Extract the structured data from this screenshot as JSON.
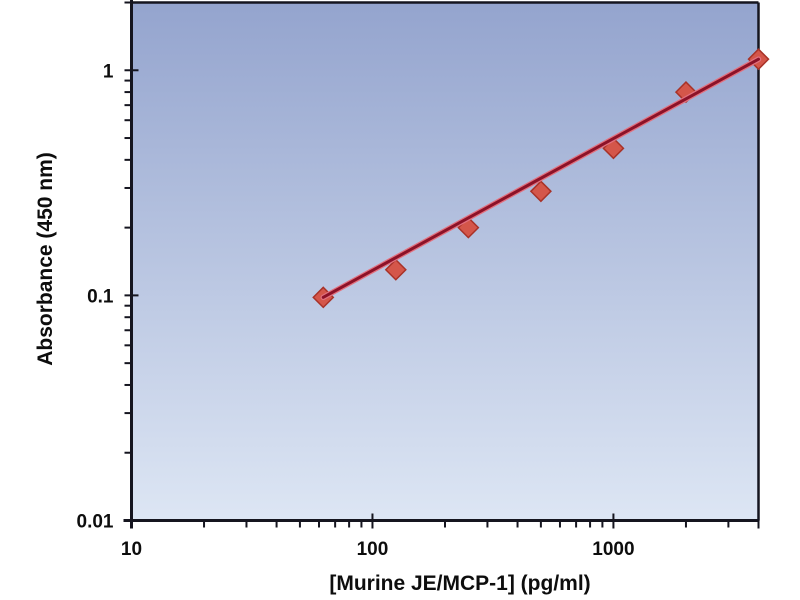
{
  "figure": {
    "background": "#ffffff"
  },
  "chart_data": {
    "type": "scatter",
    "title": "",
    "xlabel": "[Murine JE/MCP-1] (pg/ml)",
    "ylabel": "Absorbance (450 nm)",
    "x_scale": "log",
    "y_scale": "log",
    "xlim": [
      10,
      4000
    ],
    "ylim": [
      0.01,
      2
    ],
    "grid": false,
    "legend": null,
    "x_major_ticks": [
      {
        "value": 10,
        "label": "10"
      },
      {
        "value": 100,
        "label": "100"
      },
      {
        "value": 1000,
        "label": "1000"
      },
      {
        "value": 4000,
        "label": ""
      }
    ],
    "y_major_ticks": [
      {
        "value": 1,
        "label": "1"
      },
      {
        "value": 0.1,
        "label": "0.1"
      },
      {
        "value": 0.01,
        "label": "0.01"
      }
    ],
    "series": [
      {
        "name": "standard-curve-points",
        "type": "scatter",
        "marker": "diamond",
        "marker_fill": "#d4564a",
        "marker_stroke": "#a83228",
        "x": [
          62.5,
          125,
          250,
          500,
          1000,
          2000,
          4000
        ],
        "y": [
          0.098,
          0.13,
          0.2,
          0.29,
          0.45,
          0.8,
          1.12
        ]
      },
      {
        "name": "trend-line",
        "type": "line",
        "color_core": "#8c1228",
        "color_edge": "#e2707e",
        "x": [
          62.5,
          4000
        ],
        "y": [
          0.098,
          1.12
        ]
      }
    ],
    "plot_area_gradient": {
      "top": "#94a4ce",
      "bottom": "#dde6f4"
    },
    "axis_color": "#15151f",
    "text_color": "#0d0d0d"
  }
}
